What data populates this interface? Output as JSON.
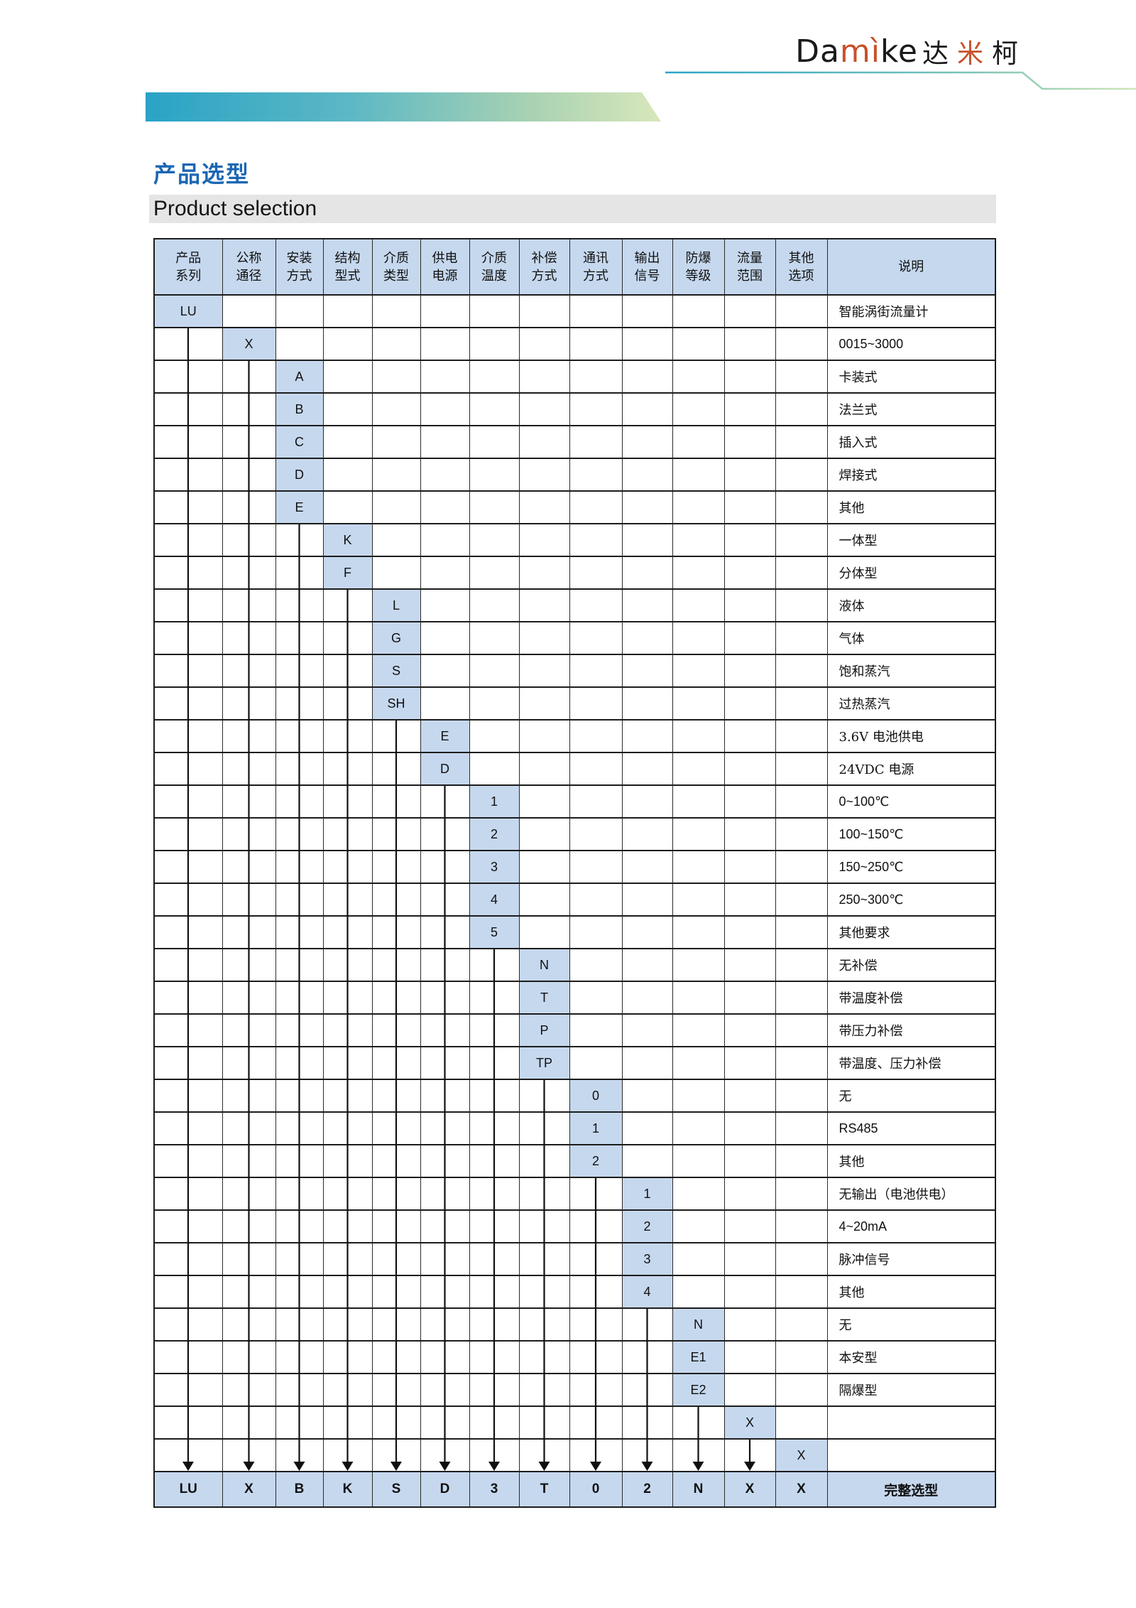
{
  "page": {
    "title_zh": "产品选型",
    "title_en": "Product selection"
  },
  "logo": {
    "segments": [
      {
        "text": "Da",
        "color": "#1a1a1a",
        "kind": "lat"
      },
      {
        "text": "mì",
        "color": "#c8502a",
        "kind": "lat"
      },
      {
        "text": "ke",
        "color": "#1a1a1a",
        "kind": "lat"
      },
      {
        "text": "达",
        "color": "#1a1a1a",
        "kind": "cjk"
      },
      {
        "text": "米",
        "color": "#c8502a",
        "kind": "cjk"
      },
      {
        "text": "柯",
        "color": "#1a1a1a",
        "kind": "cjk"
      }
    ]
  },
  "colors": {
    "title_blue": "#1b67b3",
    "cell_blue": "#c6d8ee",
    "border_dark": "#1c1c1c",
    "banner_teal": "#2aa3c6",
    "banner_green": "#d9e7bc",
    "logo_orange": "#c8502a",
    "subtitle_gray": "#e5e5e5"
  },
  "table": {
    "headers": [
      [
        "产品",
        "系列"
      ],
      [
        "公称",
        "通径"
      ],
      [
        "安装",
        "方式"
      ],
      [
        "结构",
        "型式"
      ],
      [
        "介质",
        "类型"
      ],
      [
        "供电",
        "电源"
      ],
      [
        "介质",
        "温度"
      ],
      [
        "补偿",
        "方式"
      ],
      [
        "通讯",
        "方式"
      ],
      [
        "输出",
        "信号"
      ],
      [
        "防爆",
        "等级"
      ],
      [
        "流量",
        "范围"
      ],
      [
        "其他",
        "选项"
      ],
      [
        "说明"
      ]
    ],
    "rows": [
      {
        "col": 0,
        "code": "LU",
        "desc": "智能涡街流量计"
      },
      {
        "col": 1,
        "code": "X",
        "desc": "0015~3000"
      },
      {
        "col": 2,
        "code": "A",
        "desc": "卡装式"
      },
      {
        "col": 2,
        "code": "B",
        "desc": "法兰式"
      },
      {
        "col": 2,
        "code": "C",
        "desc": "插入式"
      },
      {
        "col": 2,
        "code": "D",
        "desc": "焊接式"
      },
      {
        "col": 2,
        "code": "E",
        "desc": "其他"
      },
      {
        "col": 3,
        "code": "K",
        "desc": "一体型"
      },
      {
        "col": 3,
        "code": "F",
        "desc": "分体型"
      },
      {
        "col": 4,
        "code": "L",
        "desc": "液体"
      },
      {
        "col": 4,
        "code": "G",
        "desc": "气体"
      },
      {
        "col": 4,
        "code": "S",
        "desc": "饱和蒸汽"
      },
      {
        "col": 4,
        "code": "SH",
        "desc": "过热蒸汽"
      },
      {
        "col": 5,
        "code": "E",
        "desc": "3.6V 电池供电"
      },
      {
        "col": 5,
        "code": "D",
        "desc": "24VDC 电源"
      },
      {
        "col": 6,
        "code": "1",
        "desc": "0~100℃"
      },
      {
        "col": 6,
        "code": "2",
        "desc": "100~150℃"
      },
      {
        "col": 6,
        "code": "3",
        "desc": "150~250℃"
      },
      {
        "col": 6,
        "code": "4",
        "desc": "250~300℃"
      },
      {
        "col": 6,
        "code": "5",
        "desc": "其他要求"
      },
      {
        "col": 7,
        "code": "N",
        "desc": "无补偿"
      },
      {
        "col": 7,
        "code": "T",
        "desc": "带温度补偿"
      },
      {
        "col": 7,
        "code": "P",
        "desc": "带压力补偿"
      },
      {
        "col": 7,
        "code": "TP",
        "desc": "带温度、压力补偿"
      },
      {
        "col": 8,
        "code": "0",
        "desc": "无"
      },
      {
        "col": 8,
        "code": "1",
        "desc": "RS485"
      },
      {
        "col": 8,
        "code": "2",
        "desc": "其他"
      },
      {
        "col": 9,
        "code": "1",
        "desc": "无输出（电池供电）"
      },
      {
        "col": 9,
        "code": "2",
        "desc": "4~20mA"
      },
      {
        "col": 9,
        "code": "3",
        "desc": "脉冲信号"
      },
      {
        "col": 9,
        "code": "4",
        "desc": "其他"
      },
      {
        "col": 10,
        "code": "N",
        "desc": "无"
      },
      {
        "col": 10,
        "code": "E1",
        "desc": "本安型"
      },
      {
        "col": 10,
        "code": "E2",
        "desc": "隔爆型"
      },
      {
        "col": 11,
        "code": "X",
        "desc": ""
      },
      {
        "col": 12,
        "code": "X",
        "desc": ""
      }
    ],
    "final_row": {
      "codes": [
        "LU",
        "X",
        "B",
        "K",
        "S",
        "D",
        "3",
        "T",
        "0",
        "2",
        "N",
        "X",
        "X"
      ],
      "label": "完整选型"
    }
  }
}
